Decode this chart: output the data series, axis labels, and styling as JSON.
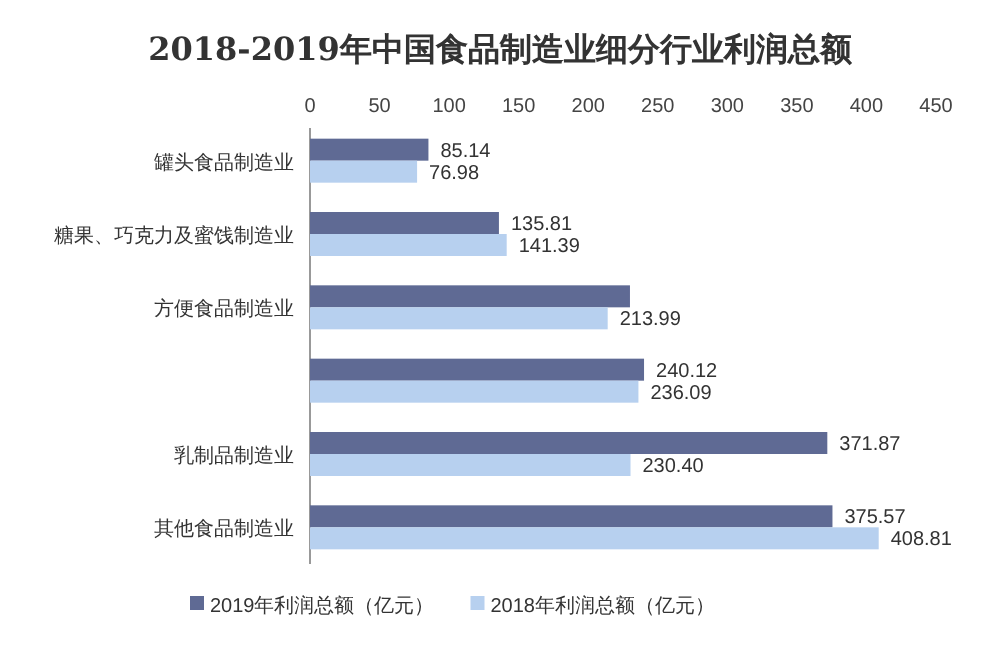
{
  "chart_data": {
    "type": "bar",
    "orientation": "horizontal",
    "title": "2018-2019年中国食品制造业细分行业利润总额",
    "categories": [
      "罐头食品制造业",
      "糖果、巧克力及蜜饯制造业",
      "方便食品制造业",
      null,
      "乳制品制造业",
      "其他食品制造业"
    ],
    "series": [
      {
        "name": "2019年利润总额（亿元）",
        "color": "#5f6a94",
        "values": [
          85.14,
          135.81,
          230,
          240.12,
          371.87,
          375.57
        ],
        "value_labels": [
          "85.14",
          "135.81",
          null,
          "240.12",
          "371.87",
          "375.57"
        ]
      },
      {
        "name": "2018年利润总额（亿元）",
        "color": "#b7d0ef",
        "values": [
          76.98,
          141.39,
          213.99,
          236.09,
          230.4,
          408.81
        ],
        "value_labels": [
          "76.98",
          "141.39",
          "213.99",
          "236.09",
          "230.40",
          "408.81"
        ]
      }
    ],
    "xlim": [
      0,
      450
    ],
    "xticks": [
      0,
      50,
      100,
      150,
      200,
      250,
      300,
      350,
      400,
      450
    ],
    "grid": false,
    "legend": "bottom"
  }
}
